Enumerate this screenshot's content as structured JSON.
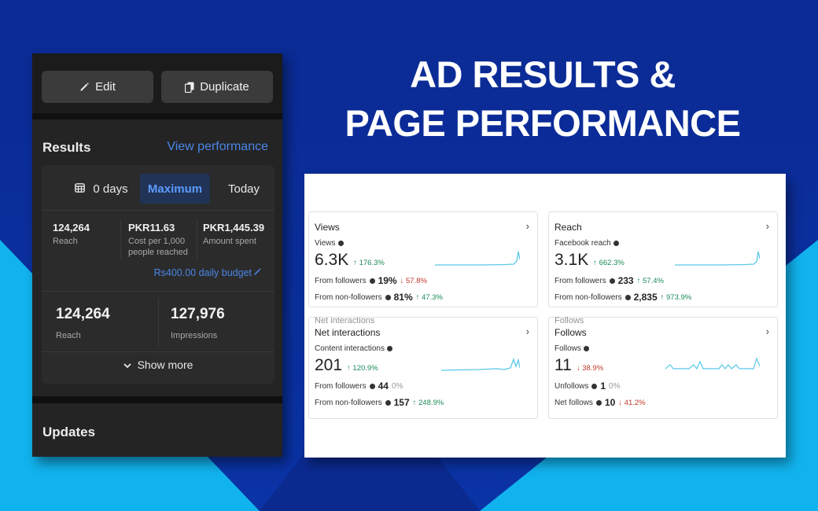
{
  "headline": {
    "line1": "AD RESULTS &",
    "line2": "PAGE PERFORMANCE"
  },
  "ad_panel": {
    "edit_label": "Edit",
    "duplicate_label": "Duplicate",
    "results": {
      "title": "Results",
      "view_performance": "View performance",
      "segments": {
        "days": "0 days",
        "maximum": "Maximum",
        "today": "Today"
      },
      "stats": [
        {
          "value": "124,264",
          "label": "Reach"
        },
        {
          "value": "PKR11.63",
          "label": "Cost per 1,000 people reached"
        },
        {
          "value": "PKR1,445.39",
          "label": "Amount spent"
        }
      ],
      "budget": "Rs400.00 daily budget",
      "big_stats": [
        {
          "value": "124,264",
          "label": "Reach"
        },
        {
          "value": "127,976",
          "label": "Impressions"
        }
      ],
      "show_more": "Show more"
    },
    "updates_title": "Updates"
  },
  "insights": {
    "views": {
      "title": "Views",
      "sub_label": "Views",
      "value": "6.3K",
      "change": "↑ 176.3%",
      "rows": [
        {
          "label": "From followers",
          "value": "19%",
          "change": "↓ 57.8%",
          "dir": "down"
        },
        {
          "label": "From non-followers",
          "value": "81%",
          "change": "↑ 47.3%",
          "dir": "up"
        }
      ]
    },
    "reach": {
      "title": "Reach",
      "sub_label": "Facebook reach",
      "value": "3.1K",
      "change": "↑ 662.3%",
      "rows": [
        {
          "label": "From followers",
          "value": "233",
          "change": "↑ 57.4%",
          "dir": "up"
        },
        {
          "label": "From non-followers",
          "value": "2,835",
          "change": "↑ 973.9%",
          "dir": "up"
        }
      ]
    },
    "net_interactions": {
      "ghost": "Net interactions",
      "title": "Net interactions",
      "sub_label": "Content interactions",
      "value": "201",
      "change": "↑ 120.9%",
      "rows": [
        {
          "label": "From followers",
          "value": "44",
          "change": "0%",
          "dir": "flat"
        },
        {
          "label": "From non-followers",
          "value": "157",
          "change": "↑ 248.9%",
          "dir": "up"
        }
      ]
    },
    "follows": {
      "ghost": "Follows",
      "title": "Follows",
      "sub_label": "Follows",
      "value": "11",
      "change": "↓ 38.9%",
      "rows": [
        {
          "label": "Unfollows",
          "value": "1",
          "change": "0%",
          "dir": "flat"
        },
        {
          "label": "Net follows",
          "value": "10",
          "change": "↓ 41.2%",
          "dir": "down"
        }
      ]
    }
  },
  "colors": {
    "accent_blue": "#4a86e8",
    "positive": "#1d8a5a",
    "negative": "#c0392b",
    "sparkline": "#5bc8e8"
  }
}
